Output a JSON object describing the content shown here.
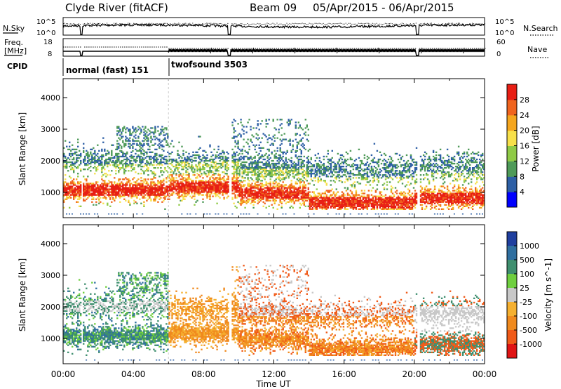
{
  "header": {
    "station": "Clyde River (fitACF)",
    "beam": "Beam 09",
    "dates": "05/Apr/2015 - 06/Apr/2015"
  },
  "noise_panel": {
    "left_label": "N.Sky",
    "left_ticks": [
      "10^5",
      "10^0"
    ],
    "right_label": "N.Search",
    "right_ticks": [
      "10^5",
      "10^0"
    ]
  },
  "freq_panel": {
    "left_label_line1": "Freq.",
    "left_label_line2": "[MHz]",
    "left_ticks": [
      "18",
      "8"
    ],
    "right_label": "Nave",
    "right_ticks": [
      "60",
      "0"
    ]
  },
  "cpid": {
    "label": "CPID",
    "segments": [
      {
        "name": "normal (fast) 151",
        "start_hour": 0
      },
      {
        "name": "twofsound 3503",
        "start_hour": 6
      }
    ]
  },
  "chart_data": [
    {
      "type": "heatmap",
      "quantity": "Power",
      "ylabel": "Slant Range [km]",
      "xlabel": "Time UT",
      "x_range_hours": [
        0,
        24
      ],
      "ylim": [
        200,
        4600
      ],
      "y_ticks": [
        "1000",
        "2000",
        "3000",
        "4000"
      ],
      "colorbar": {
        "label": "Power [dB]",
        "ticks": [
          "4",
          "8",
          "12",
          "16",
          "20",
          "24",
          "28"
        ],
        "colors": [
          "#0000ff",
          "#2d5fa5",
          "#4e9a58",
          "#8fca46",
          "#f7e04a",
          "#f5a61e",
          "#f0641e",
          "#e81e14"
        ]
      },
      "data_gaps_hours": [
        [
          1.0,
          1.1
        ],
        [
          9.4,
          9.55
        ],
        [
          20.1,
          20.25
        ]
      ]
    },
    {
      "type": "heatmap",
      "quantity": "Velocity",
      "ylabel": "Slant Range [km]",
      "xlabel": "Time UT",
      "x_range_hours": [
        0,
        24
      ],
      "ylim": [
        200,
        4600
      ],
      "y_ticks": [
        "1000",
        "2000",
        "3000",
        "4000"
      ],
      "colorbar": {
        "label": "Velocity [m s^-1]",
        "ticks": [
          "1000",
          "500",
          "100",
          "25",
          "-25",
          "-100",
          "-500",
          "-1000"
        ],
        "colors": [
          "#1f3f9f",
          "#2f6fa0",
          "#3f8f6f",
          "#6fcf3f",
          "#c8c8c8",
          "#f5b030",
          "#f08a1e",
          "#f05a18",
          "#e01414"
        ]
      },
      "data_gaps_hours": [
        [
          1.0,
          1.1
        ],
        [
          9.4,
          9.55
        ],
        [
          20.1,
          20.25
        ]
      ]
    }
  ],
  "time_axis": {
    "label": "Time UT",
    "ticks": [
      "00:00",
      "04:00",
      "08:00",
      "12:00",
      "16:00",
      "20:00",
      "00:00"
    ]
  }
}
